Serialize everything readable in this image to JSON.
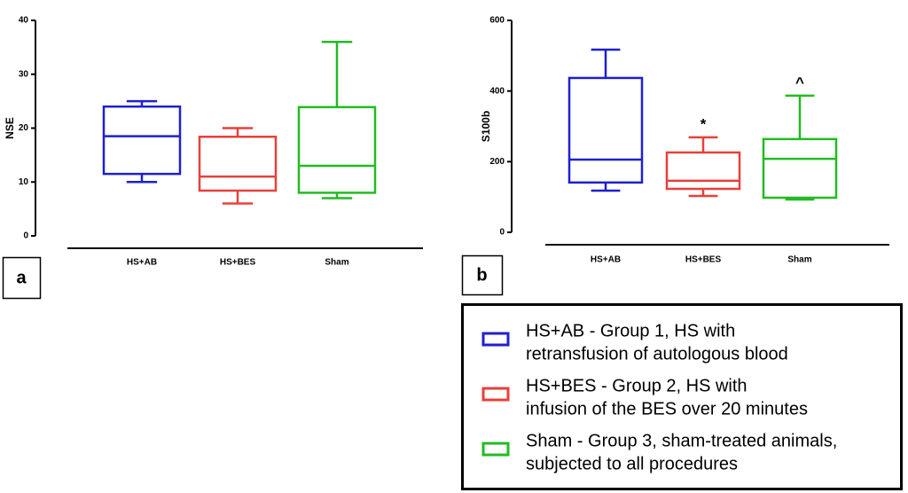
{
  "chart_data": [
    {
      "type": "box",
      "panel_label": "a",
      "ylabel": "NSE",
      "categories": [
        "HS+AB",
        "HS+BES",
        "Sham"
      ],
      "colors": [
        "#1f1fd0",
        "#e8403a",
        "#22bb22"
      ],
      "boxes": [
        {
          "min": 10,
          "q1": 11.5,
          "median": 18.5,
          "q3": 24,
          "max": 25
        },
        {
          "min": 6,
          "q1": 8.4,
          "median": 11,
          "q3": 18.4,
          "max": 20
        },
        {
          "min": 7,
          "q1": 8,
          "median": 13,
          "q3": 23.9,
          "max": 36
        }
      ],
      "ylim": [
        0,
        40
      ],
      "yticks": [
        0,
        10,
        20,
        30,
        40
      ]
    },
    {
      "type": "box",
      "panel_label": "b",
      "ylabel": "S100b",
      "categories": [
        "HS+AB",
        "HS+BES",
        "Sham"
      ],
      "colors": [
        "#1f1fd0",
        "#e8403a",
        "#22bb22"
      ],
      "boxes": [
        {
          "min": 118,
          "q1": 141,
          "median": 206,
          "q3": 437,
          "max": 517
        },
        {
          "min": 103,
          "q1": 123,
          "median": 146,
          "q3": 226,
          "max": 269,
          "annotation": "*"
        },
        {
          "min": 93,
          "q1": 98,
          "median": 208,
          "q3": 264,
          "max": 387,
          "annotation": "^"
        }
      ],
      "ylim": [
        0,
        600
      ],
      "yticks": [
        0,
        200,
        400,
        600
      ]
    }
  ],
  "legend": [
    {
      "color": "#1f1fd0",
      "lines": [
        "HS+AB - Group 1, HS with",
        "retransfusion of autologous blood"
      ]
    },
    {
      "color": "#e8403a",
      "lines": [
        "HS+BES - Group 2, HS with",
        "infusion of the BES over 20 minutes"
      ]
    },
    {
      "color": "#22bb22",
      "lines": [
        "Sham - Group 3, sham-treated animals,",
        "subjected to all procedures"
      ]
    }
  ]
}
